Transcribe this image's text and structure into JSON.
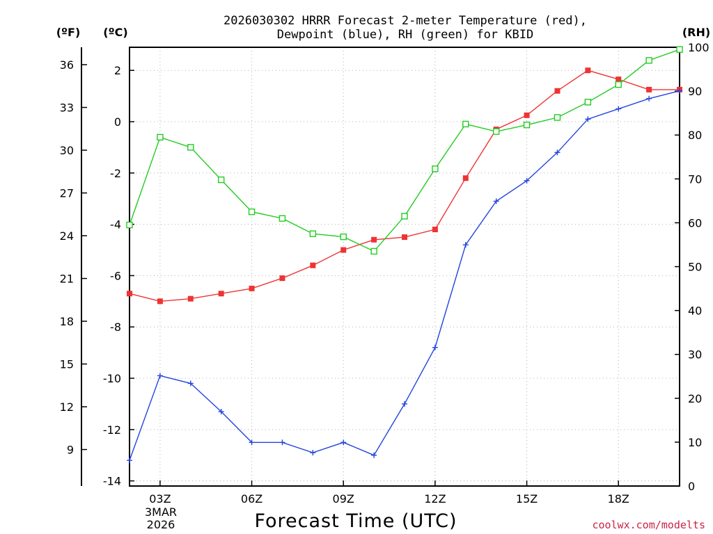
{
  "chart_data": {
    "type": "line",
    "title_lines": [
      "2026030302 HRRR Forecast 2-meter Temperature (red),",
      "Dewpoint (blue), RH (green) for KBID"
    ],
    "left_outer_unit": "(ºF)",
    "left_inner_unit": "(ºC)",
    "right_unit": "(RH)",
    "xlabel": "Forecast Time (UTC)",
    "x_ticks": [
      {
        "hour": 1,
        "label": "03Z"
      },
      {
        "hour": 4,
        "label": "06Z"
      },
      {
        "hour": 7,
        "label": "09Z"
      },
      {
        "hour": 10,
        "label": "12Z"
      },
      {
        "hour": 13,
        "label": "15Z"
      },
      {
        "hour": 16,
        "label": "18Z"
      }
    ],
    "date_lines": [
      "3MAR",
      "2026"
    ],
    "x_range": [
      0,
      18
    ],
    "celsius_range": [
      -14.2,
      2.9
    ],
    "celsius_ticks": [
      -14,
      -12,
      -10,
      -8,
      -6,
      -4,
      -2,
      0,
      2
    ],
    "fahrenheit_ticks": [
      9,
      12,
      15,
      18,
      21,
      24,
      27,
      30,
      33,
      36
    ],
    "rh_range": [
      0,
      100
    ],
    "rh_ticks": [
      0,
      10,
      20,
      30,
      40,
      50,
      60,
      70,
      80,
      90,
      100
    ],
    "x_hours": [
      0,
      1,
      2,
      3,
      4,
      5,
      6,
      7,
      8,
      9,
      10,
      11,
      12,
      13,
      14,
      15,
      16,
      17,
      18
    ],
    "series": [
      {
        "name": "Temperature",
        "axis": "celsius",
        "color": "#ee3333",
        "marker": "filled-square",
        "values": [
          -6.7,
          -7.0,
          -6.9,
          -6.7,
          -6.5,
          -6.1,
          -5.6,
          -5.0,
          -4.6,
          -4.5,
          -4.2,
          -2.2,
          -0.3,
          0.25,
          1.2,
          2.0,
          1.65,
          1.25,
          1.25
        ]
      },
      {
        "name": "Dewpoint",
        "axis": "celsius",
        "color": "#2244dd",
        "marker": "plus",
        "values": [
          -13.2,
          -9.9,
          -10.2,
          -11.3,
          -12.5,
          -12.5,
          -12.9,
          -12.5,
          -13.0,
          -11.0,
          -8.8,
          -4.8,
          -3.1,
          -2.3,
          -1.2,
          0.1,
          0.5,
          0.9,
          1.2
        ]
      },
      {
        "name": "RH",
        "axis": "rh",
        "color": "#22cc22",
        "marker": "open-square",
        "values": [
          59.5,
          79.5,
          77.2,
          69.8,
          62.5,
          61.0,
          57.5,
          56.8,
          53.5,
          61.5,
          72.3,
          82.5,
          80.8,
          82.3,
          84.0,
          87.5,
          91.5,
          97.0,
          99.5
        ]
      }
    ],
    "grid": true
  },
  "credit": "coolwx.com/modelts"
}
